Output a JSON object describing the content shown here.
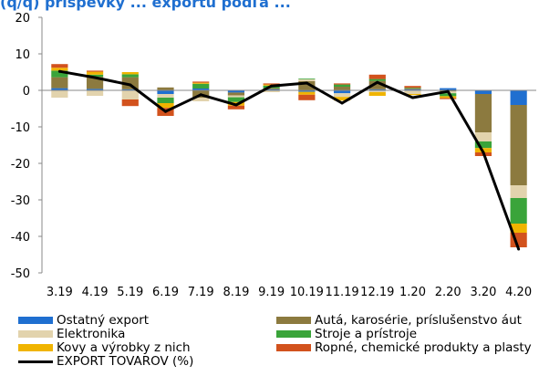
{
  "header": {
    "title_fragment": "(q/q) príspevky ... exportu podľa ..."
  },
  "chart_data": {
    "type": "bar",
    "stacked": true,
    "categories": [
      "3.19",
      "4.19",
      "5.19",
      "6.19",
      "7.19",
      "8.19",
      "9.19",
      "10.19",
      "11.19",
      "12.19",
      "1.20",
      "2.20",
      "3.20",
      "4.20"
    ],
    "ylim": [
      -50,
      20
    ],
    "yticks": [
      20,
      10,
      0,
      -10,
      -20,
      -30,
      -40,
      -50
    ],
    "ytick_labels": [
      "20",
      "10",
      "0",
      "-10",
      "-20",
      "-30",
      "-40",
      "-50"
    ],
    "grid": false,
    "legend_position": "bottom",
    "series": [
      {
        "name": "Ostatný export",
        "color": "#1f6fd0",
        "values": [
          0.6,
          0.4,
          0.3,
          -1.0,
          0.5,
          -0.6,
          0.3,
          -0.4,
          -0.8,
          0.3,
          0.3,
          0.6,
          -1.0,
          -4.0
        ]
      },
      {
        "name": "Autá, karosérie, príslušenstvo áut",
        "color": "#8c7a3f",
        "values": [
          3.0,
          3.3,
          3.3,
          0.8,
          -2.0,
          -0.8,
          0.3,
          2.5,
          1.0,
          2.3,
          0.2,
          -0.3,
          -10.5,
          -22.0
        ]
      },
      {
        "name": "Elektronika",
        "color": "#e2d3ad",
        "values": [
          -2.0,
          -1.5,
          -2.5,
          -1.0,
          -1.0,
          -0.5,
          -0.5,
          0.5,
          -1.0,
          -0.5,
          -1.0,
          -0.5,
          -2.5,
          -3.5
        ]
      },
      {
        "name": "Stroje a prístroje",
        "color": "#3aa43a",
        "values": [
          1.8,
          0.6,
          0.8,
          -1.5,
          1.3,
          -1.3,
          0.7,
          0.2,
          0.6,
          0.5,
          0.2,
          -0.8,
          -1.8,
          -7.0
        ]
      },
      {
        "name": "Kovy a výrobky z nich",
        "color": "#f0b400",
        "values": [
          0.8,
          0.8,
          0.6,
          -1.3,
          0.3,
          -1.0,
          0.3,
          -0.8,
          -1.0,
          -1.0,
          -0.3,
          -0.5,
          -1.2,
          -2.5
        ]
      },
      {
        "name": "Ropné, chemické produkty a plasty",
        "color": "#d2521d",
        "values": [
          1.0,
          0.3,
          -1.8,
          -2.2,
          0.3,
          -1.0,
          0.3,
          -1.5,
          0.3,
          1.2,
          0.5,
          -0.3,
          -1.0,
          -4.0
        ]
      },
      {
        "name": "EXPORT TOVAROV (%)",
        "color": "#000000",
        "kind": "line",
        "values": [
          5.2,
          3.5,
          1.5,
          -5.8,
          -1.2,
          -4.0,
          1.2,
          2.0,
          -3.5,
          2.2,
          -2.0,
          -0.3,
          -17.0,
          -43.5
        ]
      }
    ]
  }
}
